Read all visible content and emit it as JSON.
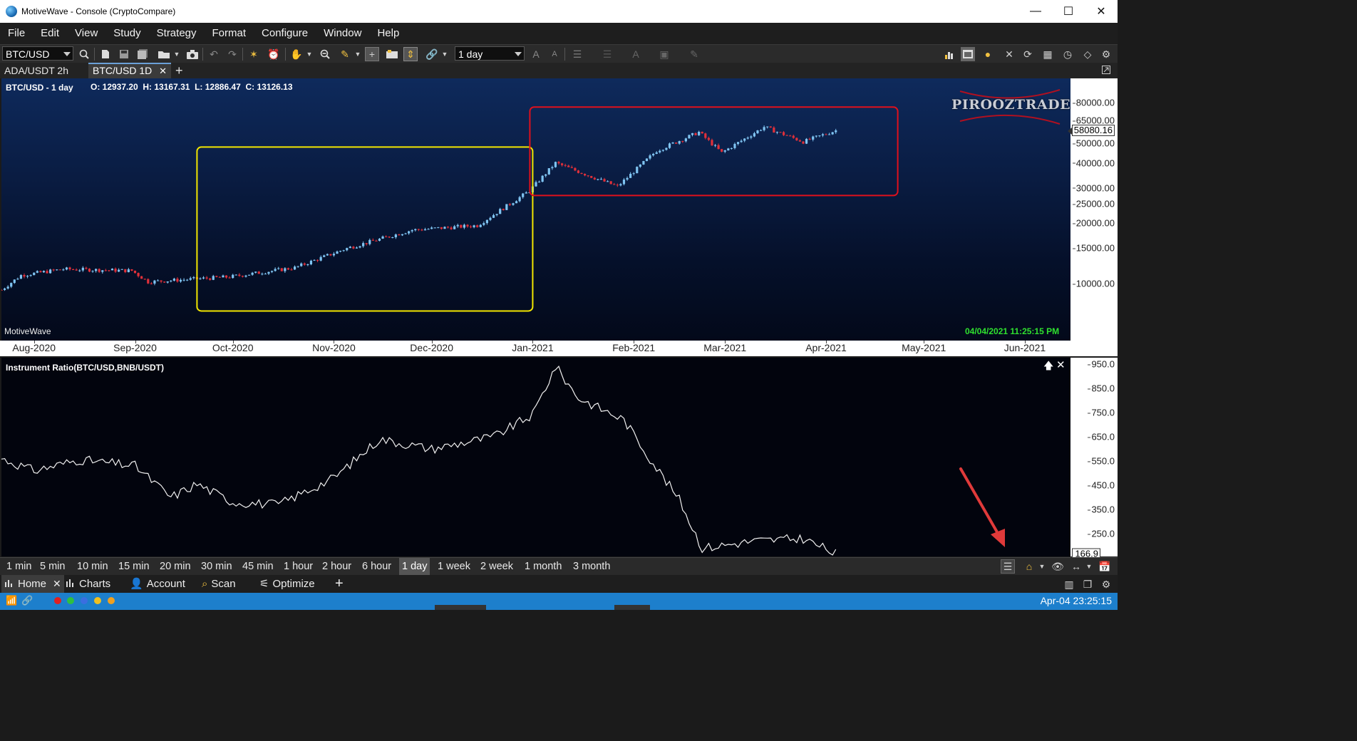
{
  "window": {
    "title": "MotiveWave - Console (CryptoCompare)",
    "controls": [
      "—",
      "☐",
      "✕"
    ]
  },
  "menu": [
    "File",
    "Edit",
    "View",
    "Study",
    "Strategy",
    "Format",
    "Configure",
    "Window",
    "Help"
  ],
  "toolbar": {
    "symbol": "BTC/USD",
    "barsize": "1 day"
  },
  "chart_tabs": [
    {
      "label": "ADA/USDT 2h"
    },
    {
      "label": "BTC/USD 1D",
      "active": true
    }
  ],
  "main_chart": {
    "title": "BTC/USD - 1 day",
    "ohlc": "O: 12937.20  H: 13167.31  L: 12886.47  C: 13126.13",
    "watermark": "PIROOZTRADER",
    "brand": "MotiveWave",
    "timestamp": "04/04/2021 11:25:15 PM",
    "current_price": "58080.16",
    "price_ticks": [
      "80000.00",
      "65000.00",
      "50000.00",
      "40000.00",
      "30000.00",
      "25000.00",
      "20000.00",
      "15000.00",
      "10000.00"
    ],
    "date_ticks": [
      "Aug-2020",
      "Sep-2020",
      "Oct-2020",
      "Nov-2020",
      "Dec-2020",
      "Jan-2021",
      "Feb-2021",
      "Mar-2021",
      "Apr-2021",
      "May-2021",
      "Jun-2021"
    ],
    "highlight_colors": {
      "yellow": "#f2e600",
      "red": "#e0101c"
    },
    "candle_colors": {
      "up": "#7fc4f2",
      "down": "#e0303a"
    }
  },
  "lower_chart": {
    "title": "Instrument Ratio(BTC/USD,BNB/USDT)",
    "current_value": "166.9",
    "ticks": [
      "950.0",
      "850.0",
      "750.0",
      "650.0",
      "550.0",
      "450.0",
      "350.0",
      "250.0"
    ]
  },
  "chart_data": [
    {
      "type": "candlestick",
      "title": "BTC/USD - 1 day",
      "scale": "log",
      "ylim": [
        7000,
        90000
      ],
      "x_range": [
        "2020-07-22",
        "2021-06-15"
      ],
      "approx_close_path": [
        [
          "2020-07-22",
          9300
        ],
        [
          "2020-07-28",
          11000
        ],
        [
          "2020-08-10",
          11800
        ],
        [
          "2020-08-31",
          11600
        ],
        [
          "2020-09-05",
          10200
        ],
        [
          "2020-09-30",
          10800
        ],
        [
          "2020-10-20",
          12000
        ],
        [
          "2020-11-05",
          15000
        ],
        [
          "2020-11-25",
          18500
        ],
        [
          "2020-12-15",
          19500
        ],
        [
          "2020-12-31",
          29000
        ],
        [
          "2021-01-08",
          40000
        ],
        [
          "2021-01-27",
          30500
        ],
        [
          "2021-02-08",
          46000
        ],
        [
          "2021-02-21",
          57000
        ],
        [
          "2021-02-28",
          45000
        ],
        [
          "2021-03-13",
          60500
        ],
        [
          "2021-03-25",
          51000
        ],
        [
          "2021-04-04",
          58080
        ]
      ]
    },
    {
      "type": "line",
      "title": "Instrument Ratio(BTC/USD,BNB/USDT)",
      "ylim": [
        166,
        960
      ],
      "approx_points": [
        [
          "2020-07-22",
          560
        ],
        [
          "2020-08-01",
          510
        ],
        [
          "2020-08-15",
          555
        ],
        [
          "2020-09-01",
          530
        ],
        [
          "2020-09-12",
          400
        ],
        [
          "2020-09-20",
          455
        ],
        [
          "2020-10-01",
          380
        ],
        [
          "2020-10-15",
          370
        ],
        [
          "2020-11-01",
          480
        ],
        [
          "2020-11-15",
          640
        ],
        [
          "2020-12-01",
          600
        ],
        [
          "2020-12-20",
          650
        ],
        [
          "2021-01-01",
          740
        ],
        [
          "2021-01-08",
          940
        ],
        [
          "2021-01-15",
          810
        ],
        [
          "2021-01-29",
          720
        ],
        [
          "2021-02-06",
          560
        ],
        [
          "2021-02-15",
          390
        ],
        [
          "2021-02-22",
          190
        ],
        [
          "2021-03-10",
          220
        ],
        [
          "2021-03-25",
          230
        ],
        [
          "2021-04-04",
          167
        ]
      ]
    }
  ],
  "timeframes": [
    "1 min",
    "5 min",
    "10 min",
    "15 min",
    "20 min",
    "30 min",
    "45 min",
    "1 hour",
    "2 hour",
    "6 hour",
    "1 day",
    "1 week",
    "2 week",
    "1 month",
    "3 month"
  ],
  "active_timeframe": "1 day",
  "workspace_tabs": [
    {
      "label": "Home",
      "active": true
    },
    {
      "label": "Charts"
    },
    {
      "label": "Account"
    },
    {
      "label": "Scan"
    },
    {
      "label": "Optimize"
    }
  ],
  "status": {
    "datetime": "Apr-04 23:25:15",
    "color": "#1d7fcc"
  }
}
